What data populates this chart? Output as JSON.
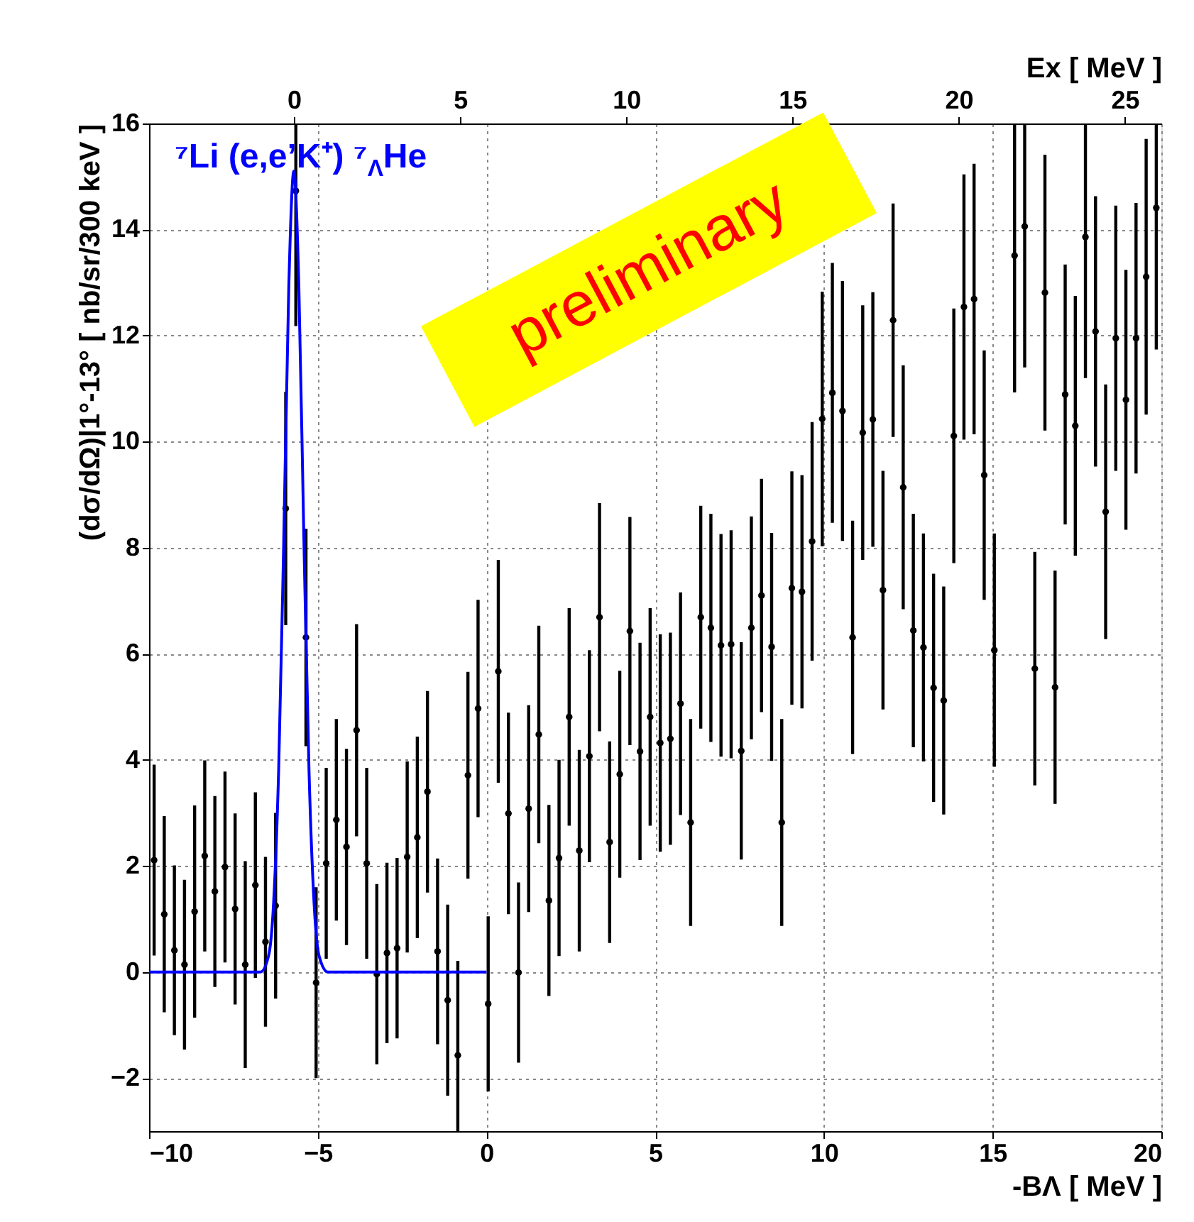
{
  "chart_data": {
    "type": "scatter",
    "xlabel": "-BΛ [ MeV ]",
    "ylabel": "(dσ/dΩ)|1°-13° [ nb/sr/300 keV ]",
    "x2label": "Ex [ MeV ]",
    "xlim": [
      -10,
      20
    ],
    "xticks": [
      -10,
      -5,
      0,
      5,
      10,
      15,
      20
    ],
    "ylim": [
      -3,
      16
    ],
    "yticks": [
      -2,
      0,
      2,
      4,
      6,
      8,
      10,
      12,
      14,
      16
    ],
    "x2lim": [
      -4.36,
      26.1
    ],
    "x2ticks": [
      0,
      5,
      10,
      15,
      20,
      25
    ],
    "grid": true,
    "title": "⁷Li (e,e’K⁺) ⁷$_{Λ}$He",
    "annotations": [
      "preliminary"
    ],
    "series": [
      {
        "color": "#000000",
        "marker": "circle",
        "x": [
          -9.85,
          -9.55,
          -9.25,
          -8.95,
          -8.65,
          -8.35,
          -8.05,
          -7.75,
          -7.45,
          -7.15,
          -6.85,
          -6.55,
          -6.25,
          -5.95,
          -5.65,
          -5.35,
          -5.05,
          -4.75,
          -4.45,
          -4.15,
          -3.85,
          -3.55,
          -3.25,
          -2.95,
          -2.65,
          -2.35,
          -2.05,
          -1.75,
          -1.45,
          -1.15,
          -0.85,
          -0.55,
          -0.25,
          0.05,
          0.35,
          0.65,
          0.95,
          1.25,
          1.55,
          1.85,
          2.15,
          2.45,
          2.75,
          3.05,
          3.35,
          3.65,
          3.95,
          4.25,
          4.55,
          4.85,
          5.15,
          5.45,
          5.75,
          6.05,
          6.35,
          6.65,
          6.95,
          7.25,
          7.55,
          7.85,
          8.15,
          8.45,
          8.75,
          9.05,
          9.35,
          9.65,
          9.95,
          10.25,
          10.55,
          10.85,
          11.15,
          11.45,
          11.75,
          12.05,
          12.35,
          12.65,
          12.95,
          13.25,
          13.55,
          13.85,
          14.15,
          14.45,
          14.75,
          15.05,
          15.35,
          15.65,
          15.95,
          16.25,
          16.55,
          16.85,
          17.15,
          17.45,
          17.75,
          18.05,
          18.35,
          18.65,
          18.95,
          19.25,
          19.55,
          19.85
        ],
        "values": [
          2.11,
          1.09,
          0.41,
          0.14,
          1.14,
          2.19,
          1.52,
          1.98,
          1.19,
          0.14,
          1.64,
          0.57,
          1.25,
          8.74,
          14.73,
          6.31,
          -0.2,
          2.05,
          2.87,
          2.36,
          4.56,
          2.05,
          -0.04,
          0.36,
          0.45,
          2.17,
          2.54,
          3.4,
          0.39,
          -0.53,
          -1.57,
          3.71,
          4.97,
          -0.6,
          5.67,
          2.99,
          -0.01,
          3.08,
          4.48,
          1.35,
          2.15,
          4.81,
          2.29,
          4.07,
          6.69,
          2.45,
          3.73,
          6.43,
          4.16,
          4.81,
          4.32,
          4.4,
          5.06,
          2.82,
          6.69,
          6.49,
          6.16,
          6.18,
          4.17,
          6.49,
          7.1,
          6.13,
          2.82,
          7.24,
          7.17,
          8.12,
          10.43,
          10.92,
          10.58,
          6.31,
          10.17,
          10.42,
          7.2,
          12.29,
          9.14,
          6.44,
          6.12,
          5.36,
          5.12,
          10.11,
          12.54,
          12.69,
          9.37,
          6.07,
          null,
          13.51,
          14.06,
          5.72,
          12.81,
          5.37,
          10.89,
          10.3,
          13.86,
          12.08,
          8.68,
          11.95,
          10.79,
          11.95,
          13.11,
          14.41
        ],
        "errors": [
          1.8,
          1.85,
          1.6,
          1.6,
          2.0,
          1.8,
          1.8,
          1.8,
          1.8,
          1.95,
          1.75,
          1.6,
          1.75,
          2.2,
          [
            12.18,
            16
          ],
          2.05,
          1.8,
          1.8,
          1.9,
          1.85,
          2.0,
          1.8,
          1.7,
          1.7,
          1.7,
          1.8,
          1.9,
          1.9,
          1.75,
          1.8,
          [
            -3,
            0.21
          ],
          1.95,
          2.05,
          1.65,
          2.1,
          1.9,
          1.7,
          1.95,
          2.05,
          1.8,
          1.85,
          2.05,
          1.9,
          2.0,
          2.15,
          1.9,
          1.95,
          2.15,
          2.05,
          2.05,
          2.05,
          2.0,
          2.1,
          1.95,
          2.1,
          2.15,
          2.1,
          2.15,
          2.05,
          2.1,
          2.2,
          2.15,
          1.95,
          2.2,
          2.2,
          2.25,
          2.4,
          2.45,
          2.45,
          2.2,
          2.4,
          2.4,
          2.25,
          2.2,
          2.3,
          2.2,
          2.15,
          2.15,
          2.15,
          2.4,
          2.5,
          2.55,
          2.35,
          2.2,
          null,
          [
            10.93,
            16
          ],
          [
            11.4,
            16
          ],
          2.2,
          2.6,
          2.2,
          2.45,
          2.45,
          [
            11.2,
            16
          ],
          2.55,
          2.4,
          2.5,
          2.45,
          2.55,
          2.6,
          [
            11.74,
            16
          ]
        ]
      },
      {
        "type": "line",
        "color": "#0000ff",
        "marker": "none",
        "line_style": "solid",
        "x": [
          -10,
          -6.7,
          -6.46,
          -6.31,
          -6.16,
          -6.01,
          -5.86,
          -5.71,
          -5.56,
          -5.41,
          -5.26,
          -5.11,
          -4.96,
          -4.7,
          0
        ],
        "values": [
          0,
          0,
          0.3,
          1.3,
          3.8,
          8.1,
          12.9,
          15.1,
          12.9,
          8.1,
          3.8,
          1.3,
          0.3,
          0,
          0
        ]
      }
    ]
  }
}
